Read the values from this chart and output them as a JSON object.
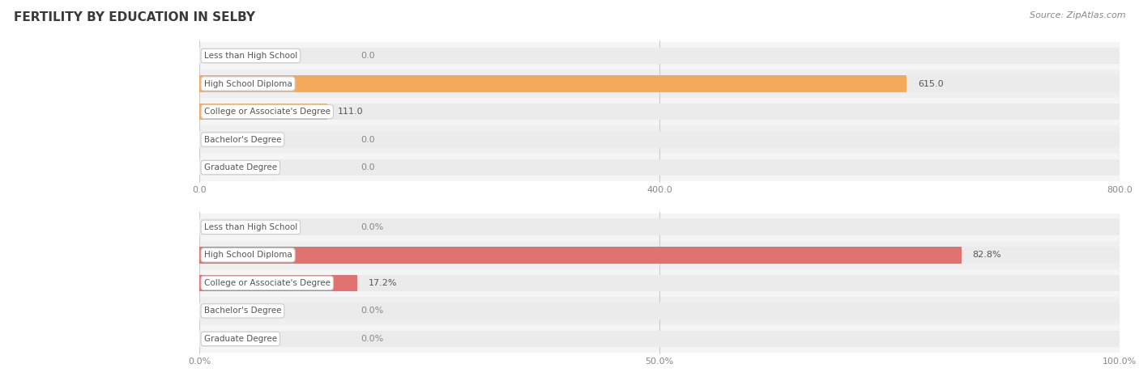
{
  "title": "FERTILITY BY EDUCATION IN SELBY",
  "source": "Source: ZipAtlas.com",
  "top_chart": {
    "categories": [
      "Less than High School",
      "High School Diploma",
      "College or Associate's Degree",
      "Bachelor's Degree",
      "Graduate Degree"
    ],
    "values": [
      0.0,
      615.0,
      111.0,
      0.0,
      0.0
    ],
    "xlim": [
      0,
      800.0
    ],
    "xticks": [
      0.0,
      400.0,
      800.0
    ],
    "xtick_labels": [
      "0.0",
      "400.0",
      "800.0"
    ],
    "bar_color": "#F5A95A",
    "bar_bg_color": "#EBEBEB",
    "row_bg_colors": [
      "#F5F5F5",
      "#EFEFEF",
      "#F5F5F5",
      "#EFEFEF",
      "#F5F5F5"
    ]
  },
  "bottom_chart": {
    "categories": [
      "Less than High School",
      "High School Diploma",
      "College or Associate's Degree",
      "Bachelor's Degree",
      "Graduate Degree"
    ],
    "values": [
      0.0,
      82.8,
      17.2,
      0.0,
      0.0
    ],
    "xlim": [
      0,
      100.0
    ],
    "xticks": [
      0.0,
      50.0,
      100.0
    ],
    "xtick_labels": [
      "0.0%",
      "50.0%",
      "100.0%"
    ],
    "bar_color": "#E07272",
    "bar_bg_color": "#EBEBEB",
    "row_bg_colors": [
      "#F5F5F5",
      "#EFEFEF",
      "#F5F5F5",
      "#EFEFEF",
      "#F5F5F5"
    ]
  },
  "background_color": "#ffffff",
  "label_box_facecolor": "#ffffff",
  "label_box_edgecolor": "#cccccc",
  "label_fontsize": 7.5,
  "value_fontsize": 8,
  "title_fontsize": 11,
  "source_fontsize": 8
}
